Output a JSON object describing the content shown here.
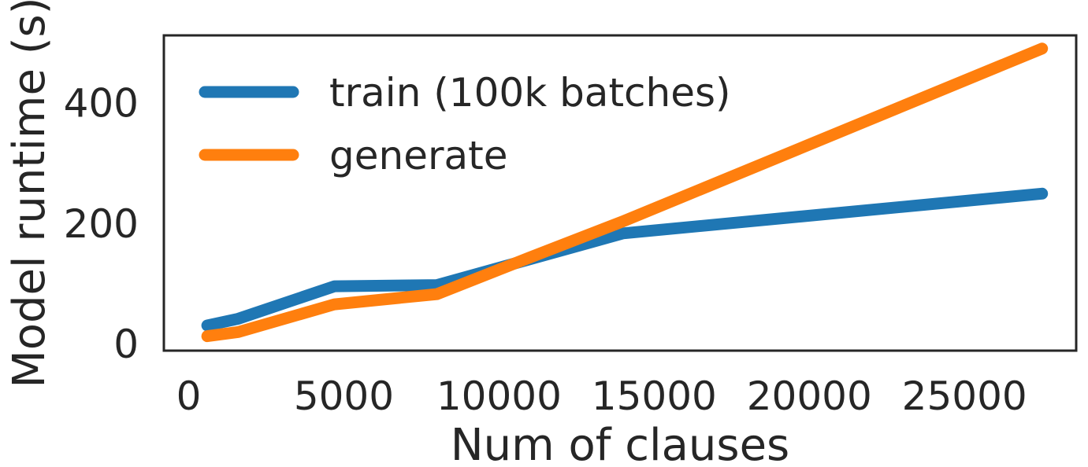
{
  "chart_data": {
    "type": "line",
    "xlabel": "Num of clauses",
    "ylabel": "Model runtime (s)",
    "xlim": [
      -800,
      28600
    ],
    "ylim": [
      -12,
      512
    ],
    "xticks": [
      0,
      5000,
      10000,
      15000,
      20000,
      25000
    ],
    "yticks": [
      0,
      200,
      400
    ],
    "grid": false,
    "legend_position": "top-left",
    "series": [
      {
        "name": "train (100k batches)",
        "color": "#1f77b4",
        "x": [
          600,
          1600,
          4700,
          8000,
          11000,
          14000,
          27500
        ],
        "y": [
          30,
          41,
          95,
          97,
          140,
          183,
          249
        ]
      },
      {
        "name": "generate",
        "color": "#ff7f0e",
        "x": [
          600,
          1600,
          4700,
          8000,
          11000,
          14000,
          27500
        ],
        "y": [
          12,
          19,
          65,
          82,
          143,
          203,
          490
        ]
      }
    ]
  }
}
